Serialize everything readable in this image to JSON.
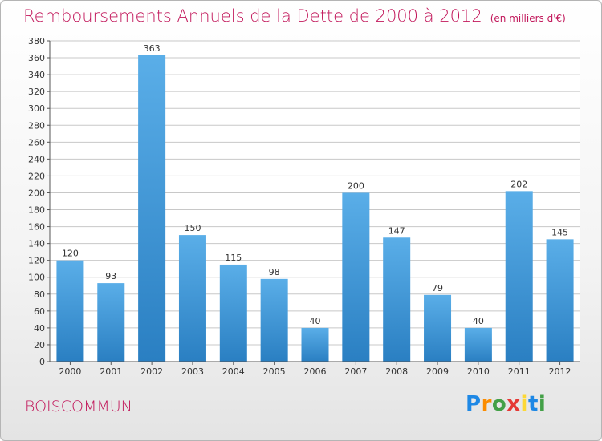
{
  "header": {
    "title": "Remboursements Annuels de la Dette de 2000 à 2012",
    "unit": "(en milliers d'€)"
  },
  "footer": {
    "town": "BOISCOMMUN",
    "logo_parts": [
      "P",
      "r",
      "o",
      "x",
      "i",
      "t",
      "i"
    ]
  },
  "colors": {
    "title": "#c2185b",
    "bar_top": "#5aaee8",
    "bar_bottom": "#2a7fc2",
    "grid": "#c8c8c8"
  },
  "chart_data": {
    "type": "bar",
    "title": "Remboursements Annuels de la Dette de 2000 à 2012",
    "subtitle": "(en milliers d'€)",
    "categories": [
      "2000",
      "2001",
      "2002",
      "2003",
      "2004",
      "2005",
      "2006",
      "2007",
      "2008",
      "2009",
      "2010",
      "2011",
      "2012"
    ],
    "values": [
      120,
      93,
      363,
      150,
      115,
      98,
      40,
      200,
      147,
      79,
      40,
      202,
      145
    ],
    "ylim": [
      0,
      380
    ],
    "ytick_step": 20,
    "grid": true,
    "legend": "none"
  }
}
